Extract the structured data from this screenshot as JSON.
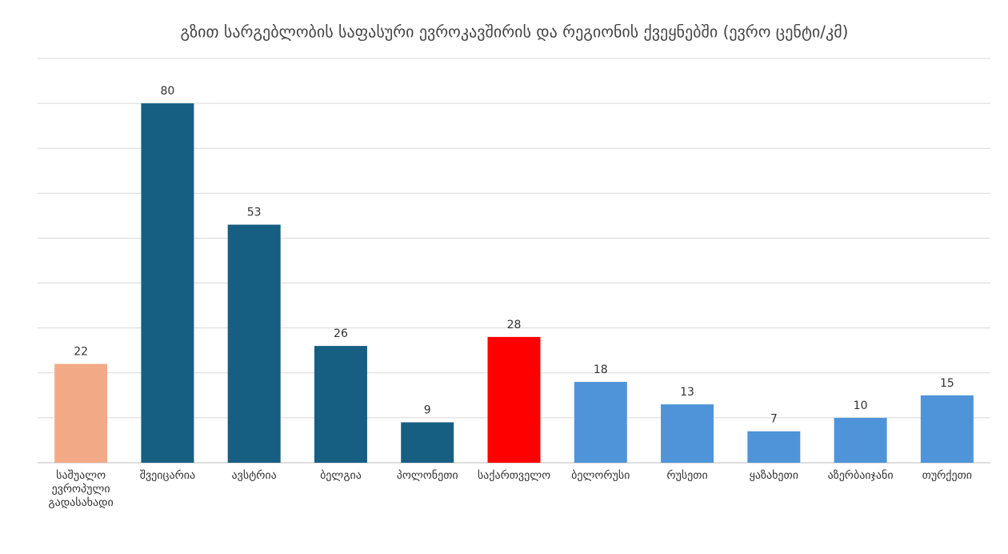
{
  "chart_data": {
    "type": "bar",
    "title": "გზით სარგებლობის საფასური ევროკავშირის და რეგიონის ქვეყნებში (ევრო ცენტი/კმ)",
    "categories": [
      "საშუალო ევროპული გადასახადი",
      "შვეიცარია",
      "ავსტრია",
      "ბელგია",
      "პოლონეთი",
      "საქართველო",
      "ბელორუსი",
      "რუსეთი",
      "ყაზახეთი",
      "აზერბაიჯანი",
      "თურქეთი"
    ],
    "values": [
      22,
      80,
      53,
      26,
      9,
      28,
      18,
      13,
      7,
      10,
      15
    ],
    "colors": [
      "#f2aa86",
      "#175e83",
      "#175e83",
      "#175e83",
      "#175e83",
      "#ff0000",
      "#4f94d8",
      "#4f94d8",
      "#4f94d8",
      "#4f94d8",
      "#4f94d8"
    ],
    "ylim": [
      0,
      90
    ],
    "yticks": [
      0,
      10,
      20,
      30,
      40,
      50,
      60,
      70,
      80,
      90
    ],
    "grid": true
  }
}
